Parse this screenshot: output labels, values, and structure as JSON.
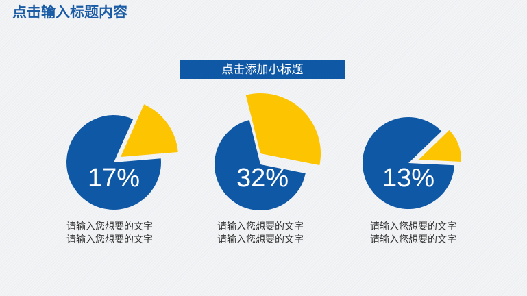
{
  "title": "点击输入标题内容",
  "banner": "点击添加小标题",
  "colors": {
    "primary": "#0f58a6",
    "accent": "#fdc401",
    "title": "#1a5ba6"
  },
  "chart_data": [
    {
      "type": "pie",
      "values": [
        17,
        83
      ],
      "value_label": "17%",
      "caption_lines": [
        "请输入您想要的文字",
        "请输入您想要的文字"
      ]
    },
    {
      "type": "pie",
      "values": [
        32,
        68
      ],
      "value_label": "32%",
      "caption_lines": [
        "请输入您想要的文字",
        "请输入您想要的文字"
      ]
    },
    {
      "type": "pie",
      "values": [
        13,
        87
      ],
      "value_label": "13%",
      "caption_lines": [
        "请输入您想要的文字",
        "请输入您想要的文字"
      ]
    }
  ]
}
